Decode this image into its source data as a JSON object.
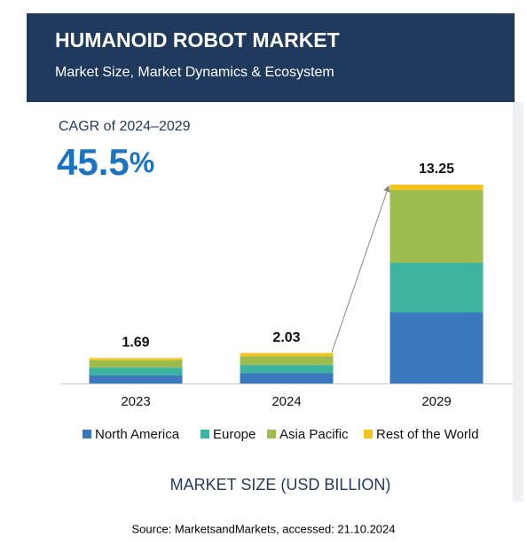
{
  "chart_data": {
    "type": "stacked_bar",
    "title": "HUMANOID ROBOT MARKET",
    "subtitle": "Market Size, Market Dynamics & Ecosystem",
    "cagr_label": "CAGR of 2024–2029",
    "cagr_value": "45.5%",
    "categories": [
      "2023",
      "2024",
      "2029"
    ],
    "series": [
      {
        "name": "North America",
        "color": "#3a78bd",
        "values": [
          0.55,
          0.7,
          4.73
        ]
      },
      {
        "name": "Europe",
        "color": "#3bb39e",
        "values": [
          0.5,
          0.53,
          3.31
        ]
      },
      {
        "name": "Asia Pacific",
        "color": "#9cbc4f",
        "values": [
          0.5,
          0.59,
          4.85
        ]
      },
      {
        "name": "Rest of the World",
        "color": "#f6c21c",
        "values": [
          0.14,
          0.21,
          0.36
        ]
      }
    ],
    "totals": [
      1.69,
      2.03,
      13.25
    ],
    "xlabel": "MARKET SIZE (USD BILLION)"
  },
  "source": "Source: MarketsandMarkets, accessed: 21.10.2024"
}
